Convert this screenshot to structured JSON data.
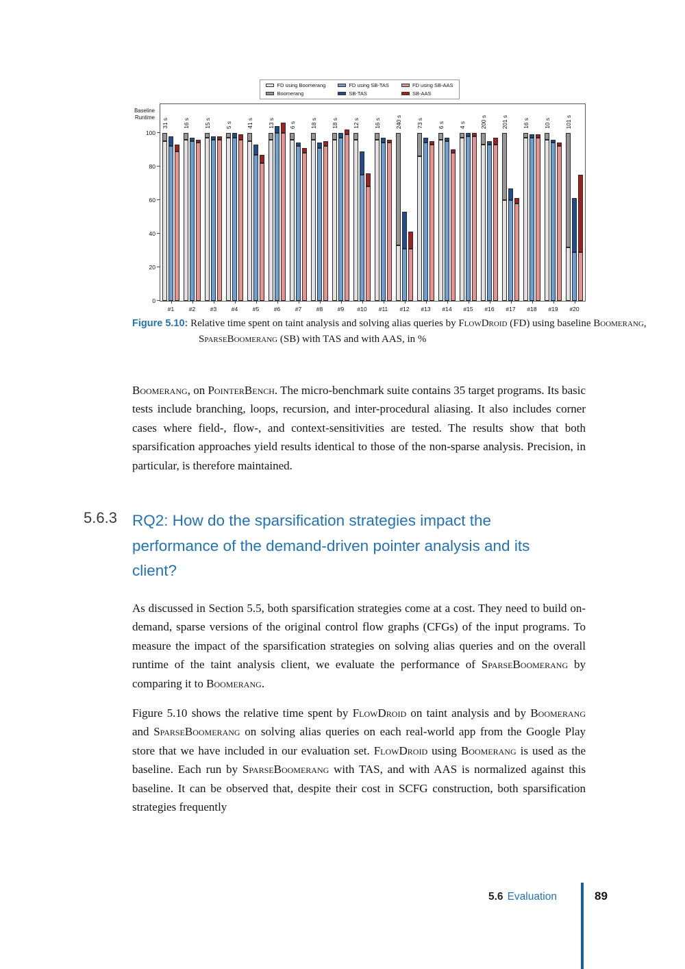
{
  "figure": {
    "caption_label": "Figure 5.10:",
    "caption_segments": [
      {
        "t": " Relative time spent on taint analysis and solving alias queries by ",
        "sc": false
      },
      {
        "t": "FlowDroid",
        "sc": true
      },
      {
        "t": " (FD) using baseline ",
        "sc": false
      },
      {
        "t": "Boomerang",
        "sc": true
      },
      {
        "t": ", ",
        "sc": false
      },
      {
        "t": "SparseBoomerang",
        "sc": true
      },
      {
        "t": " (SB) with TAS and with AAS, in %",
        "sc": false
      }
    ]
  },
  "chart_data": {
    "type": "bar",
    "title": "",
    "ylabel": "Baseline Runtime",
    "yticks": [
      0,
      20,
      40,
      60,
      80,
      100
    ],
    "ylim": [
      0,
      117
    ],
    "grid": "off",
    "legend_position": "top center",
    "categories": [
      "#1",
      "#2",
      "#3",
      "#4",
      "#5",
      "#6",
      "#7",
      "#8",
      "#9",
      "#10",
      "#11",
      "#12",
      "#13",
      "#14",
      "#15",
      "#16",
      "#17",
      "#18",
      "#19",
      "#20"
    ],
    "runtime_labels": [
      "31 s",
      "16 s",
      "15 s",
      "5 s",
      "41 s",
      "13 s",
      "6 s",
      "18 s",
      "18 s",
      "12 s",
      "16 s",
      "240 s",
      "73 s",
      "6 s",
      "4 s",
      "200 s",
      "201 s",
      "16 s",
      "10 s",
      "101 s"
    ],
    "stacks": [
      {
        "fd_label": "FD using Boomerang",
        "alias_label": "Boomerang",
        "fd_color": "#e2e2e2",
        "alias_color": "#969696",
        "fd": [
          95,
          96,
          97,
          97,
          95,
          96,
          96,
          96,
          96,
          96,
          96,
          33,
          86,
          96,
          97,
          93,
          60,
          97,
          96,
          32
        ],
        "alias": [
          5,
          4,
          3,
          3,
          5,
          4,
          4,
          4,
          4,
          4,
          4,
          67,
          14,
          4,
          3,
          7,
          40,
          3,
          4,
          68
        ]
      },
      {
        "fd_label": "FD using SB-TAS",
        "alias_label": "SB-TAS",
        "fd_color": "#6e9fd4",
        "alias_color": "#1f4e8f",
        "fd": [
          92,
          95,
          96,
          97,
          87,
          100,
          92,
          91,
          97,
          75,
          94,
          31,
          94,
          95,
          98,
          93,
          60,
          97,
          94,
          29
        ],
        "alias": [
          6,
          2,
          2,
          3,
          6,
          4,
          2,
          3,
          3,
          14,
          3,
          22,
          3,
          2,
          2,
          2,
          7,
          2,
          2,
          32
        ]
      },
      {
        "fd_label": "FD using SB-AAS",
        "alias_label": "SB-AAS",
        "fd_color": "#e89191",
        "alias_color": "#a32020",
        "fd": [
          89,
          94,
          96,
          96,
          82,
          100,
          88,
          92,
          99,
          68,
          94,
          31,
          93,
          88,
          98,
          93,
          58,
          97,
          92,
          29
        ],
        "alias": [
          4,
          2,
          2,
          3,
          5,
          6,
          3,
          3,
          3,
          8,
          2,
          10,
          2,
          2,
          2,
          4,
          3,
          2,
          2,
          46
        ]
      }
    ]
  },
  "paragraphs": [
    {
      "segments": [
        {
          "t": "Boomerang",
          "sc": true
        },
        {
          "t": ", on ",
          "sc": false
        },
        {
          "t": "PointerBench",
          "sc": true
        },
        {
          "t": ". The micro-benchmark suite contains 35 target programs. Its basic tests include branching, loops, recursion, and inter-procedural aliasing. It also includes corner cases where field-, flow-, and context-sensitivities are tested. The results show that both sparsification approaches yield results identical to those of the non-sparse analysis. Precision, in particular, is therefore maintained.",
          "sc": false
        }
      ]
    },
    {
      "segments": [
        {
          "t": "As discussed in Section 5.5, both sparsification strategies come at a cost. They need to build on-demand, sparse versions of the original control flow graphs (CFGs) of the input programs. To measure the impact of the sparsification strategies on solving alias queries and on the overall runtime of the taint analysis client, we evaluate the performance of ",
          "sc": false
        },
        {
          "t": "SparseBoomerang",
          "sc": true
        },
        {
          "t": " by comparing it to ",
          "sc": false
        },
        {
          "t": "Boomerang",
          "sc": true
        },
        {
          "t": ".",
          "sc": false
        }
      ]
    },
    {
      "segments": [
        {
          "t": "Figure 5.10 shows the relative time spent by ",
          "sc": false
        },
        {
          "t": "FlowDroid",
          "sc": true
        },
        {
          "t": " on taint analysis and by ",
          "sc": false
        },
        {
          "t": "Boomerang",
          "sc": true
        },
        {
          "t": " and ",
          "sc": false
        },
        {
          "t": "SparseBoomerang",
          "sc": true
        },
        {
          "t": " on solving alias queries on each real-world app from the Google Play store that we have included in our evaluation set. ",
          "sc": false
        },
        {
          "t": "FlowDroid",
          "sc": true
        },
        {
          "t": " using ",
          "sc": false
        },
        {
          "t": "Boomerang",
          "sc": true
        },
        {
          "t": " is used as the baseline. Each run by ",
          "sc": false
        },
        {
          "t": "SparseBoomerang",
          "sc": true
        },
        {
          "t": " with TAS, and with AAS is normalized against this baseline. It can be observed that, despite their cost in SCFG construction, both sparsification strategies frequently",
          "sc": false
        }
      ]
    }
  ],
  "section": {
    "number": "5.6.3",
    "title": "RQ2: How do the sparsification strategies impact the performance of the demand-driven pointer analysis and its client?"
  },
  "footer": {
    "section_number": "5.6",
    "section_name": "Evaluation",
    "page_number": "89"
  }
}
